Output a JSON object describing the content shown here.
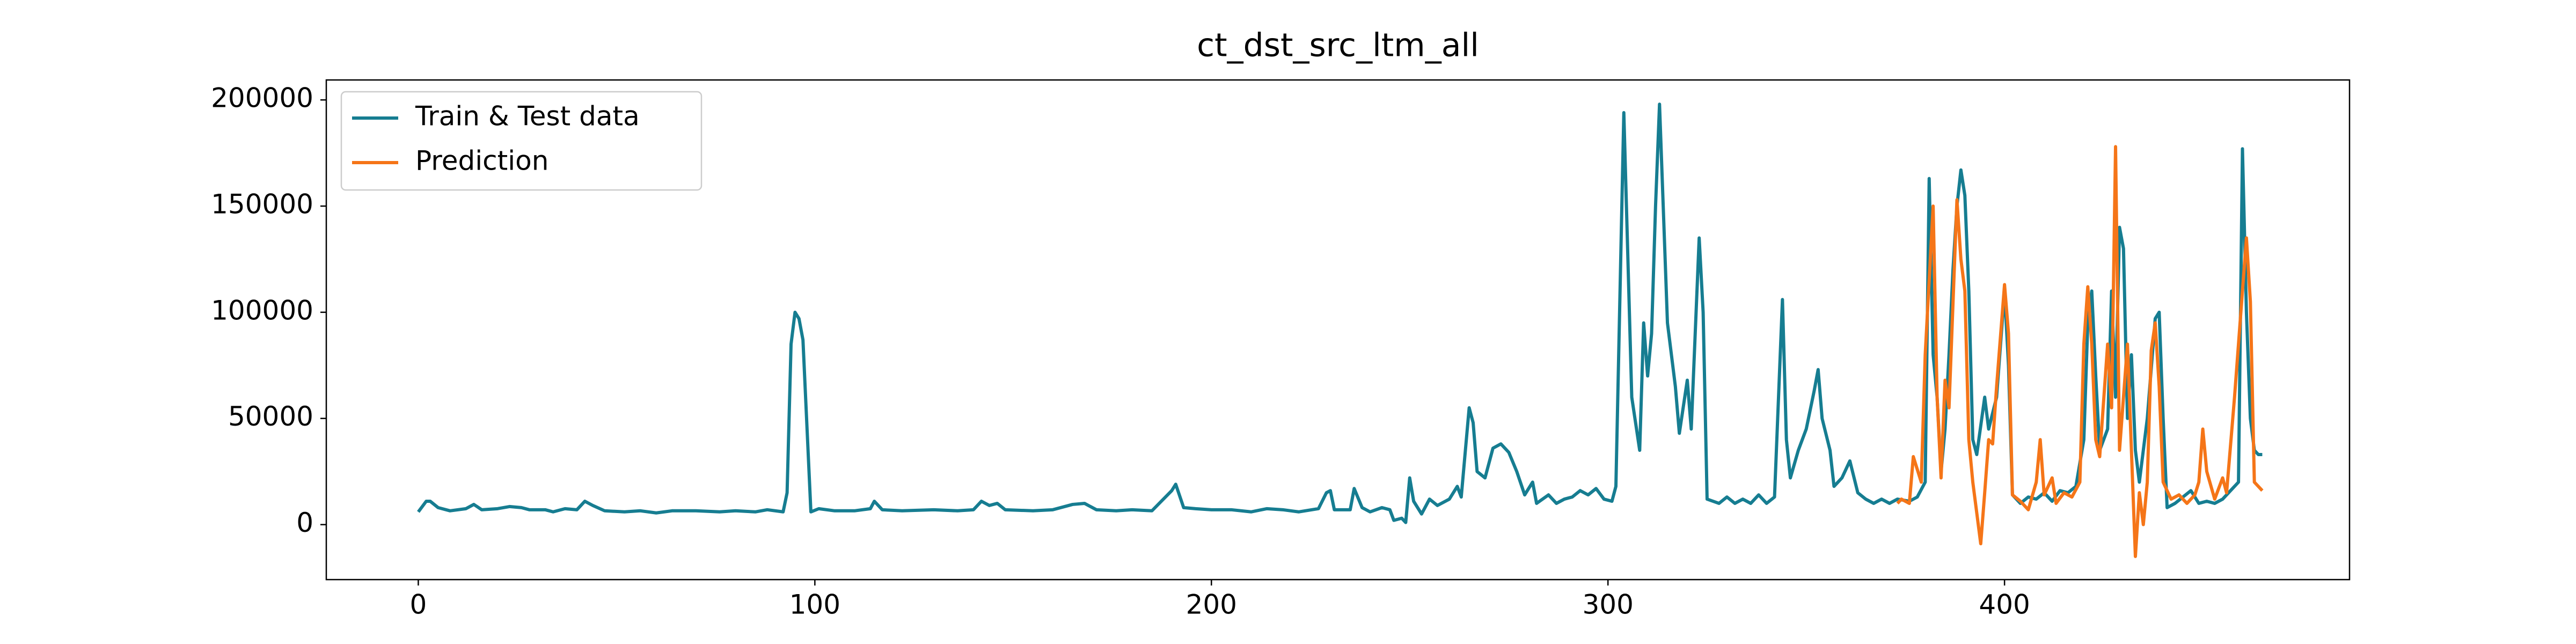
{
  "chart_data": {
    "type": "line",
    "title": "ct_dst_src_ltm_all",
    "xlim": [
      -23.2,
      487
    ],
    "ylim": [
      -25900,
      209400
    ],
    "xticks": [
      0,
      100,
      200,
      300,
      400
    ],
    "yticks": [
      0,
      50000,
      100000,
      150000,
      200000
    ],
    "legend": "upper left",
    "series": [
      {
        "name": "Train & Test data",
        "color": "#167d91",
        "x": [
          0,
          2,
          3,
          5,
          8,
          12,
          14,
          16,
          20,
          23,
          26,
          28,
          32,
          34,
          37,
          40,
          42,
          44,
          47,
          52,
          56,
          60,
          64,
          70,
          76,
          80,
          85,
          88,
          92,
          93,
          94,
          95,
          96,
          97,
          99,
          101,
          105,
          110,
          114,
          115,
          117,
          122,
          130,
          136,
          140,
          142,
          144,
          146,
          148,
          155,
          160,
          165,
          168,
          171,
          176,
          180,
          185,
          190,
          191,
          193,
          196,
          200,
          205,
          210,
          214,
          218,
          222,
          227,
          229,
          230,
          231,
          235,
          236,
          238,
          240,
          243,
          245,
          246,
          248,
          249,
          250,
          251,
          253,
          255,
          257,
          260,
          262,
          263,
          265,
          266,
          267,
          269,
          271,
          273,
          275,
          277,
          279,
          281,
          282,
          285,
          287,
          289,
          291,
          293,
          295,
          297,
          299,
          301,
          302,
          304,
          306,
          308,
          309,
          310,
          311,
          312,
          313,
          315,
          317,
          318,
          320,
          321,
          323,
          324,
          325,
          328,
          330,
          332,
          334,
          336,
          338,
          340,
          342,
          344,
          345,
          346,
          348,
          350,
          352,
          353,
          354,
          356,
          357,
          359,
          361,
          363,
          365,
          367,
          369,
          371,
          373,
          376,
          378,
          380,
          381,
          382,
          383,
          384,
          385,
          386,
          387,
          388,
          389,
          390,
          391,
          392,
          393,
          395,
          396,
          398,
          400,
          401,
          402,
          404,
          406,
          408,
          410,
          412,
          414,
          416,
          418,
          420,
          421,
          422,
          423,
          424,
          426,
          427,
          428,
          429,
          430,
          431,
          432,
          433,
          434,
          436,
          438,
          439,
          440,
          441,
          443,
          445,
          447,
          449,
          451,
          453,
          455,
          457,
          459,
          460,
          461,
          462,
          463,
          464,
          465
        ],
        "values": [
          6000,
          11000,
          11000,
          8000,
          6500,
          7500,
          9500,
          7000,
          7500,
          8500,
          8000,
          7000,
          7000,
          6000,
          7500,
          7000,
          11000,
          9000,
          6500,
          6000,
          6500,
          5500,
          6500,
          6500,
          6000,
          6500,
          6000,
          7000,
          6000,
          15000,
          85000,
          100000,
          97000,
          87000,
          6000,
          7500,
          6500,
          6500,
          7500,
          11000,
          7000,
          6500,
          7000,
          6500,
          7000,
          11000,
          9000,
          10000,
          7000,
          6500,
          7000,
          9500,
          10000,
          7000,
          6500,
          7000,
          6500,
          16000,
          19000,
          8000,
          7500,
          7000,
          7000,
          6000,
          7500,
          7000,
          6000,
          7500,
          15000,
          16000,
          7000,
          7000,
          17000,
          8000,
          6000,
          8000,
          7000,
          2000,
          3000,
          1000,
          22000,
          11000,
          5000,
          12000,
          9000,
          12000,
          18000,
          13000,
          55000,
          48000,
          25000,
          22000,
          36000,
          38000,
          34000,
          25000,
          14000,
          20000,
          10000,
          14000,
          10000,
          12000,
          13000,
          16000,
          14000,
          17000,
          12000,
          11000,
          18000,
          194000,
          60000,
          35000,
          95000,
          70000,
          90000,
          150000,
          198000,
          95000,
          65000,
          43000,
          68000,
          45000,
          135000,
          100000,
          12000,
          10000,
          13000,
          10000,
          12000,
          10000,
          14000,
          10000,
          13000,
          106000,
          40000,
          22000,
          35000,
          45000,
          63000,
          73000,
          50000,
          35000,
          18000,
          22000,
          30000,
          15000,
          12000,
          10000,
          12000,
          10000,
          12000,
          11000,
          13000,
          20000,
          163000,
          80000,
          60000,
          25000,
          45000,
          80000,
          120000,
          150000,
          167000,
          155000,
          110000,
          40000,
          33000,
          60000,
          45000,
          60000,
          110000,
          75000,
          14000,
          10000,
          13000,
          12000,
          15000,
          11000,
          16000,
          15000,
          18000,
          40000,
          95000,
          110000,
          70000,
          35000,
          45000,
          110000,
          60000,
          140000,
          130000,
          50000,
          80000,
          35000,
          20000,
          50000,
          97000,
          100000,
          50000,
          8000,
          10000,
          13000,
          16000,
          10000,
          11000,
          10000,
          12000,
          16000,
          20000,
          177000,
          100000,
          50000,
          35000,
          33000,
          33000
        ]
      },
      {
        "name": "Prediction",
        "color": "#f57518",
        "x": [
          373,
          374,
          376,
          377,
          379,
          380,
          382,
          383,
          384,
          385,
          386,
          388,
          389,
          390,
          391,
          392,
          394,
          395,
          396,
          397,
          398,
          400,
          401,
          402,
          404,
          406,
          408,
          409,
          410,
          412,
          413,
          415,
          417,
          419,
          420,
          421,
          422,
          423,
          424,
          426,
          427,
          428,
          429,
          431,
          433,
          434,
          435,
          436,
          437,
          438,
          439,
          440,
          442,
          444,
          446,
          448,
          449,
          450,
          451,
          453,
          455,
          456,
          458,
          461,
          462,
          463,
          465
        ],
        "values": [
          10000,
          12000,
          10000,
          32000,
          20000,
          80000,
          150000,
          60000,
          22000,
          68000,
          55000,
          153000,
          125000,
          110000,
          40000,
          20000,
          -9000,
          15000,
          40000,
          38000,
          65000,
          113000,
          90000,
          14000,
          11000,
          7000,
          20000,
          40000,
          14000,
          22000,
          10000,
          15000,
          13000,
          20000,
          85000,
          112000,
          85000,
          40000,
          32000,
          85000,
          55000,
          178000,
          35000,
          85000,
          -15000,
          15000,
          0,
          20000,
          82000,
          95000,
          65000,
          20000,
          12000,
          14000,
          10000,
          14000,
          20000,
          45000,
          25000,
          12000,
          22000,
          15000,
          60000,
          135000,
          105000,
          20000,
          16000
        ]
      }
    ]
  }
}
